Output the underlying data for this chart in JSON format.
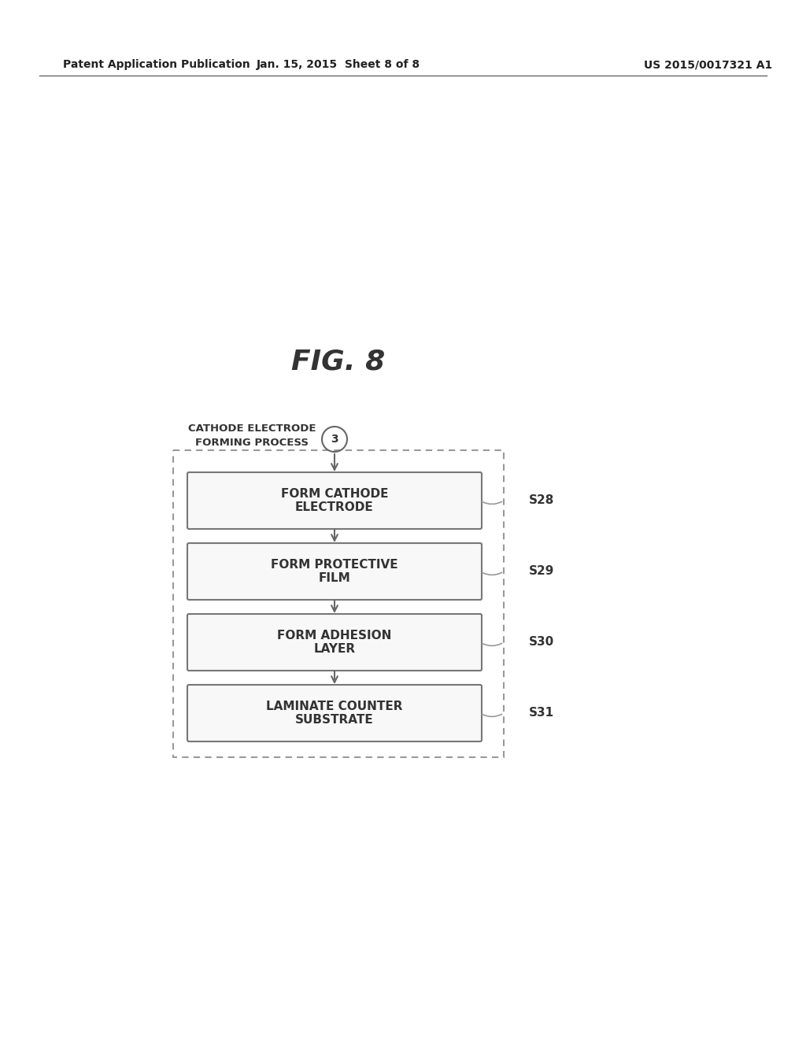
{
  "bg_color": "#ffffff",
  "header_left": "Patent Application Publication",
  "header_mid": "Jan. 15, 2015  Sheet 8 of 8",
  "header_right": "US 2015/0017321 A1",
  "fig_label": "FIG. 8",
  "process_label_line1": "CATHODE ELECTRODE",
  "process_label_line2": "FORMING PROCESS",
  "circle_label": "3",
  "boxes": [
    {
      "text": "FORM CATHODE\nELECTRODE",
      "step": "S28"
    },
    {
      "text": "FORM PROTECTIVE\nFILM",
      "step": "S29"
    },
    {
      "text": "FORM ADHESION\nLAYER",
      "step": "S30"
    },
    {
      "text": "LAMINATE COUNTER\nSUBSTRATE",
      "step": "S31"
    }
  ],
  "arrow_color": "#666666",
  "box_edge_color": "#777777",
  "dashed_color": "#999999",
  "text_color": "#333333"
}
